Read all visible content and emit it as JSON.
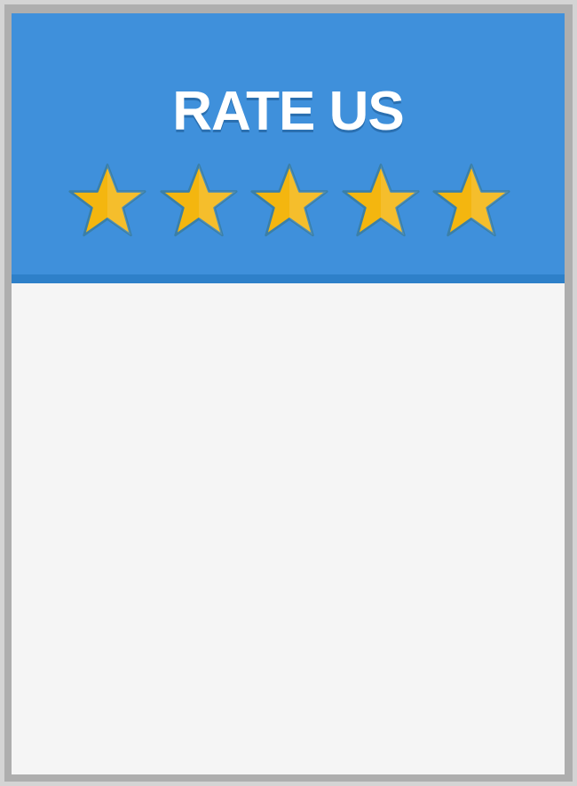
{
  "header": {
    "title": "RATE US",
    "background_color": "#3f90db",
    "accent_strip_color": "#2e80c9"
  },
  "rating": {
    "value": 5,
    "max": 5,
    "star_fill_color": "#f4b60f",
    "star_outline_color": "#3a7fa8",
    "star_icon": "star-icon"
  },
  "content": {
    "background_color": "#f5f5f5"
  }
}
